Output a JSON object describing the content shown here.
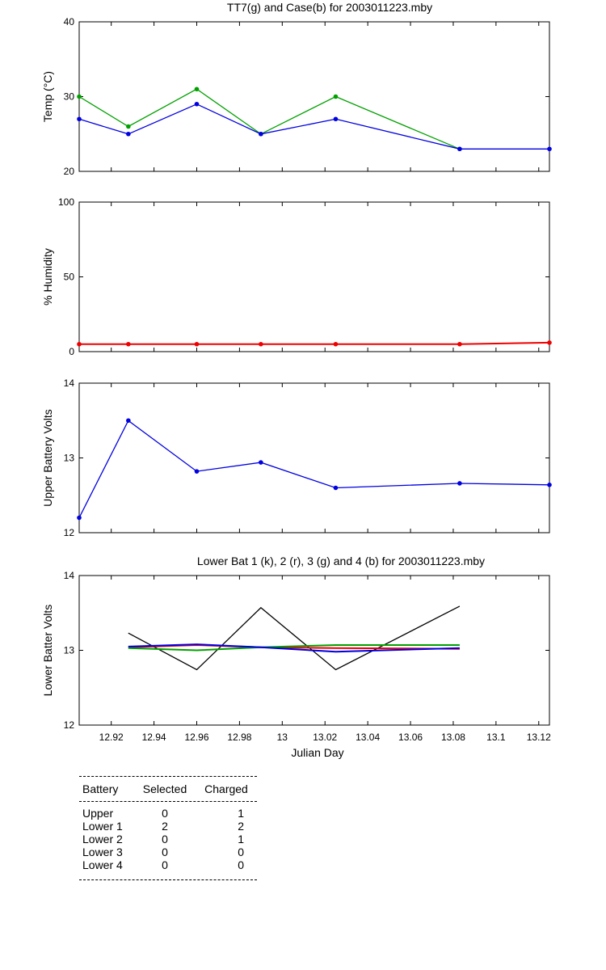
{
  "chart_data": [
    {
      "type": "line",
      "title": "TT7(g) and Case(b) for 2003011223.mby",
      "xlabel": "",
      "ylabel": "Temp  (°C)",
      "xlim": [
        12.905,
        13.125
      ],
      "ylim": [
        20,
        40
      ],
      "yticks": [
        20,
        30,
        40
      ],
      "series": [
        {
          "color": "#00a000",
          "x": [
            12.905,
            12.928,
            12.96,
            12.99,
            13.025,
            13.083
          ],
          "values": [
            30,
            26,
            31,
            25,
            30,
            23
          ]
        },
        {
          "color": "#0000e0",
          "x": [
            12.905,
            12.928,
            12.96,
            12.99,
            13.025,
            13.083,
            13.125
          ],
          "values": [
            27,
            25,
            29,
            25,
            27,
            23,
            23
          ]
        }
      ]
    },
    {
      "type": "line",
      "title": "",
      "xlabel": "",
      "ylabel": "% Humidity",
      "xlim": [
        12.905,
        13.125
      ],
      "ylim": [
        0,
        100
      ],
      "yticks": [
        0,
        50,
        100
      ],
      "series": [
        {
          "color": "#ee0000",
          "x": [
            12.905,
            12.928,
            12.96,
            12.99,
            13.025,
            13.083,
            13.125
          ],
          "values": [
            5,
            5,
            5,
            5,
            5,
            5,
            6
          ]
        }
      ]
    },
    {
      "type": "line",
      "title": "",
      "xlabel": "",
      "ylabel": "Upper Battery Volts",
      "xlim": [
        12.905,
        13.125
      ],
      "ylim": [
        12,
        14
      ],
      "yticks": [
        12,
        13,
        14
      ],
      "series": [
        {
          "color": "#0000e0",
          "x": [
            12.905,
            12.928,
            12.96,
            12.99,
            13.025,
            13.083,
            13.125
          ],
          "values": [
            12.2,
            13.5,
            12.82,
            12.94,
            12.6,
            12.66,
            12.64
          ]
        }
      ]
    },
    {
      "type": "line",
      "title": "Lower Bat 1 (k), 2 (r), 3 (g) and 4 (b) for 2003011223.mby",
      "xlabel": "Julian Day",
      "ylabel": "Lower Batter Volts",
      "xlim": [
        12.905,
        13.125
      ],
      "ylim": [
        12,
        14
      ],
      "yticks": [
        12,
        13,
        14
      ],
      "xticks": [
        12.92,
        12.94,
        12.96,
        12.98,
        13,
        13.02,
        13.04,
        13.06,
        13.08,
        13.1,
        13.12
      ],
      "xtick_labels": [
        "12.92",
        "12.94",
        "12.96",
        "12.98",
        "13",
        "13.02",
        "13.04",
        "13.06",
        "13.08",
        "13.1",
        "13.12"
      ],
      "series": [
        {
          "color": "#000000",
          "x": [
            12.928,
            12.96,
            12.99,
            13.025,
            13.083
          ],
          "values": [
            13.23,
            12.74,
            13.57,
            12.74,
            13.59
          ]
        },
        {
          "color": "#ee0000",
          "x": [
            12.928,
            12.96,
            12.99,
            13.025,
            13.083
          ],
          "values": [
            13.04,
            13.07,
            13.04,
            13.03,
            13.02
          ]
        },
        {
          "color": "#00a000",
          "x": [
            12.928,
            12.96,
            12.99,
            13.025,
            13.083
          ],
          "values": [
            13.03,
            13.0,
            13.04,
            13.07,
            13.07
          ]
        },
        {
          "color": "#0000e0",
          "x": [
            12.928,
            12.96,
            12.99,
            13.025,
            13.083
          ],
          "values": [
            13.05,
            13.08,
            13.04,
            12.98,
            13.03
          ]
        }
      ]
    }
  ],
  "table": {
    "headers": [
      "Battery",
      "Selected",
      "Charged"
    ],
    "rows": [
      [
        "Upper",
        "0",
        "1"
      ],
      [
        "Lower 1",
        "2",
        "2"
      ],
      [
        "Lower 2",
        "0",
        "1"
      ],
      [
        "Lower 3",
        "0",
        "0"
      ],
      [
        "Lower 4",
        "0",
        "0"
      ]
    ]
  }
}
